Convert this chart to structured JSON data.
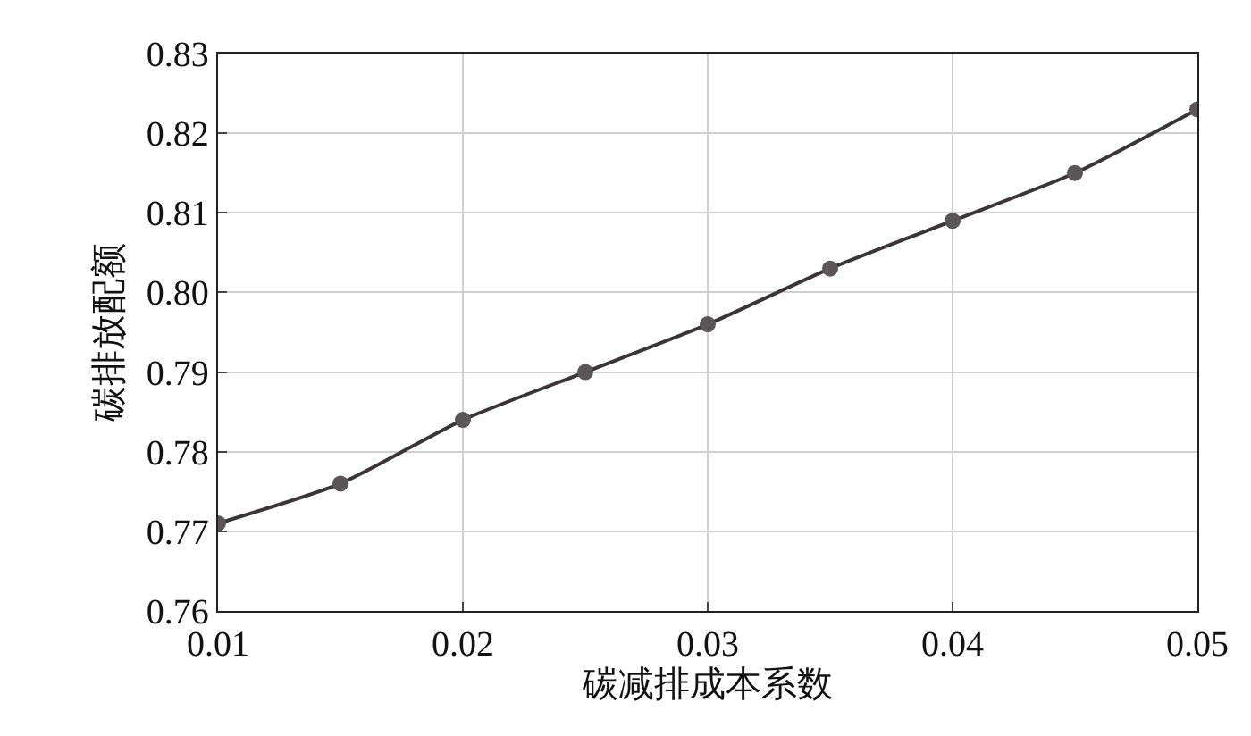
{
  "chart_data": {
    "type": "line",
    "xlabel": "碳减排成本系数",
    "ylabel": "碳排放配额",
    "x": [
      0.01,
      0.015,
      0.02,
      0.025,
      0.03,
      0.035,
      0.04,
      0.045,
      0.05
    ],
    "series": [
      {
        "color": "#3a3536",
        "values": [
          0.771,
          0.776,
          0.784,
          0.79,
          0.796,
          0.803,
          0.809,
          0.815,
          0.823
        ]
      }
    ],
    "xlim": [
      0.01,
      0.05
    ],
    "xticks": [
      0.01,
      0.02,
      0.03,
      0.04,
      0.05
    ],
    "ylim": [
      0.76,
      0.83
    ],
    "yticks": [
      0.76,
      0.77,
      0.78,
      0.79,
      {
        "value": 0.8,
        "label": "0.80"
      },
      0.81,
      0.82,
      0.83
    ],
    "grid": true,
    "marker": "circle",
    "line_style": "solid"
  }
}
